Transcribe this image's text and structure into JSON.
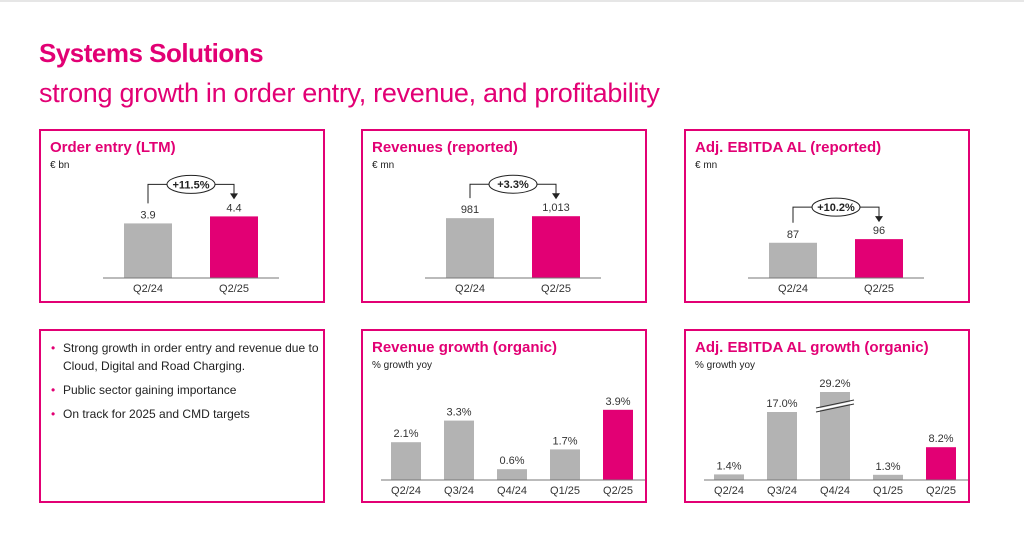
{
  "title": "Systems Solutions",
  "subtitle": "strong growth in order entry, revenue, and profitability",
  "colors": {
    "accent": "#e20074",
    "bar_gray": "#b3b3b3"
  },
  "bullets": [
    "Strong growth in order entry and revenue due to Cloud, Digital and Road Charging.",
    "Public sector gaining importance",
    "On track for 2025 and CMD targets"
  ],
  "chart_data": [
    {
      "type": "bar",
      "title": "Order entry (LTM)",
      "unit": "€ bn",
      "categories": [
        "Q2/24",
        "Q2/25"
      ],
      "values": [
        3.9,
        4.4
      ],
      "labels": [
        "3.9",
        "4.4"
      ],
      "highlight_last": true,
      "change_label": "+11.5%"
    },
    {
      "type": "bar",
      "title": "Revenues (reported)",
      "unit": "€ mn",
      "categories": [
        "Q2/24",
        "Q2/25"
      ],
      "values": [
        981,
        1013
      ],
      "labels": [
        "981",
        "1,013"
      ],
      "highlight_last": true,
      "change_label": "+3.3%"
    },
    {
      "type": "bar",
      "title": "Adj. EBITDA AL (reported)",
      "unit": "€ mn",
      "categories": [
        "Q2/24",
        "Q2/25"
      ],
      "values": [
        87,
        96
      ],
      "labels": [
        "87",
        "96"
      ],
      "highlight_last": true,
      "change_label": "+10.2%"
    },
    {
      "type": "bar",
      "title": "Revenue growth (organic)",
      "unit": "% growth yoy",
      "categories": [
        "Q2/24",
        "Q3/24",
        "Q4/24",
        "Q1/25",
        "Q2/25"
      ],
      "values": [
        2.1,
        3.3,
        0.6,
        1.7,
        3.9
      ],
      "labels": [
        "2.1%",
        "3.3%",
        "0.6%",
        "1.7%",
        "3.9%"
      ],
      "highlight_last": true
    },
    {
      "type": "bar",
      "title": "Adj. EBITDA AL growth (organic)",
      "unit": "% growth yoy",
      "categories": [
        "Q2/24",
        "Q3/24",
        "Q4/24",
        "Q1/25",
        "Q2/25"
      ],
      "values": [
        1.4,
        17.0,
        29.2,
        1.3,
        8.2
      ],
      "labels": [
        "1.4%",
        "17.0%",
        "29.2%",
        "1.3%",
        "8.2%"
      ],
      "highlight_last": true,
      "axis_break_category": "Q4/24"
    }
  ]
}
